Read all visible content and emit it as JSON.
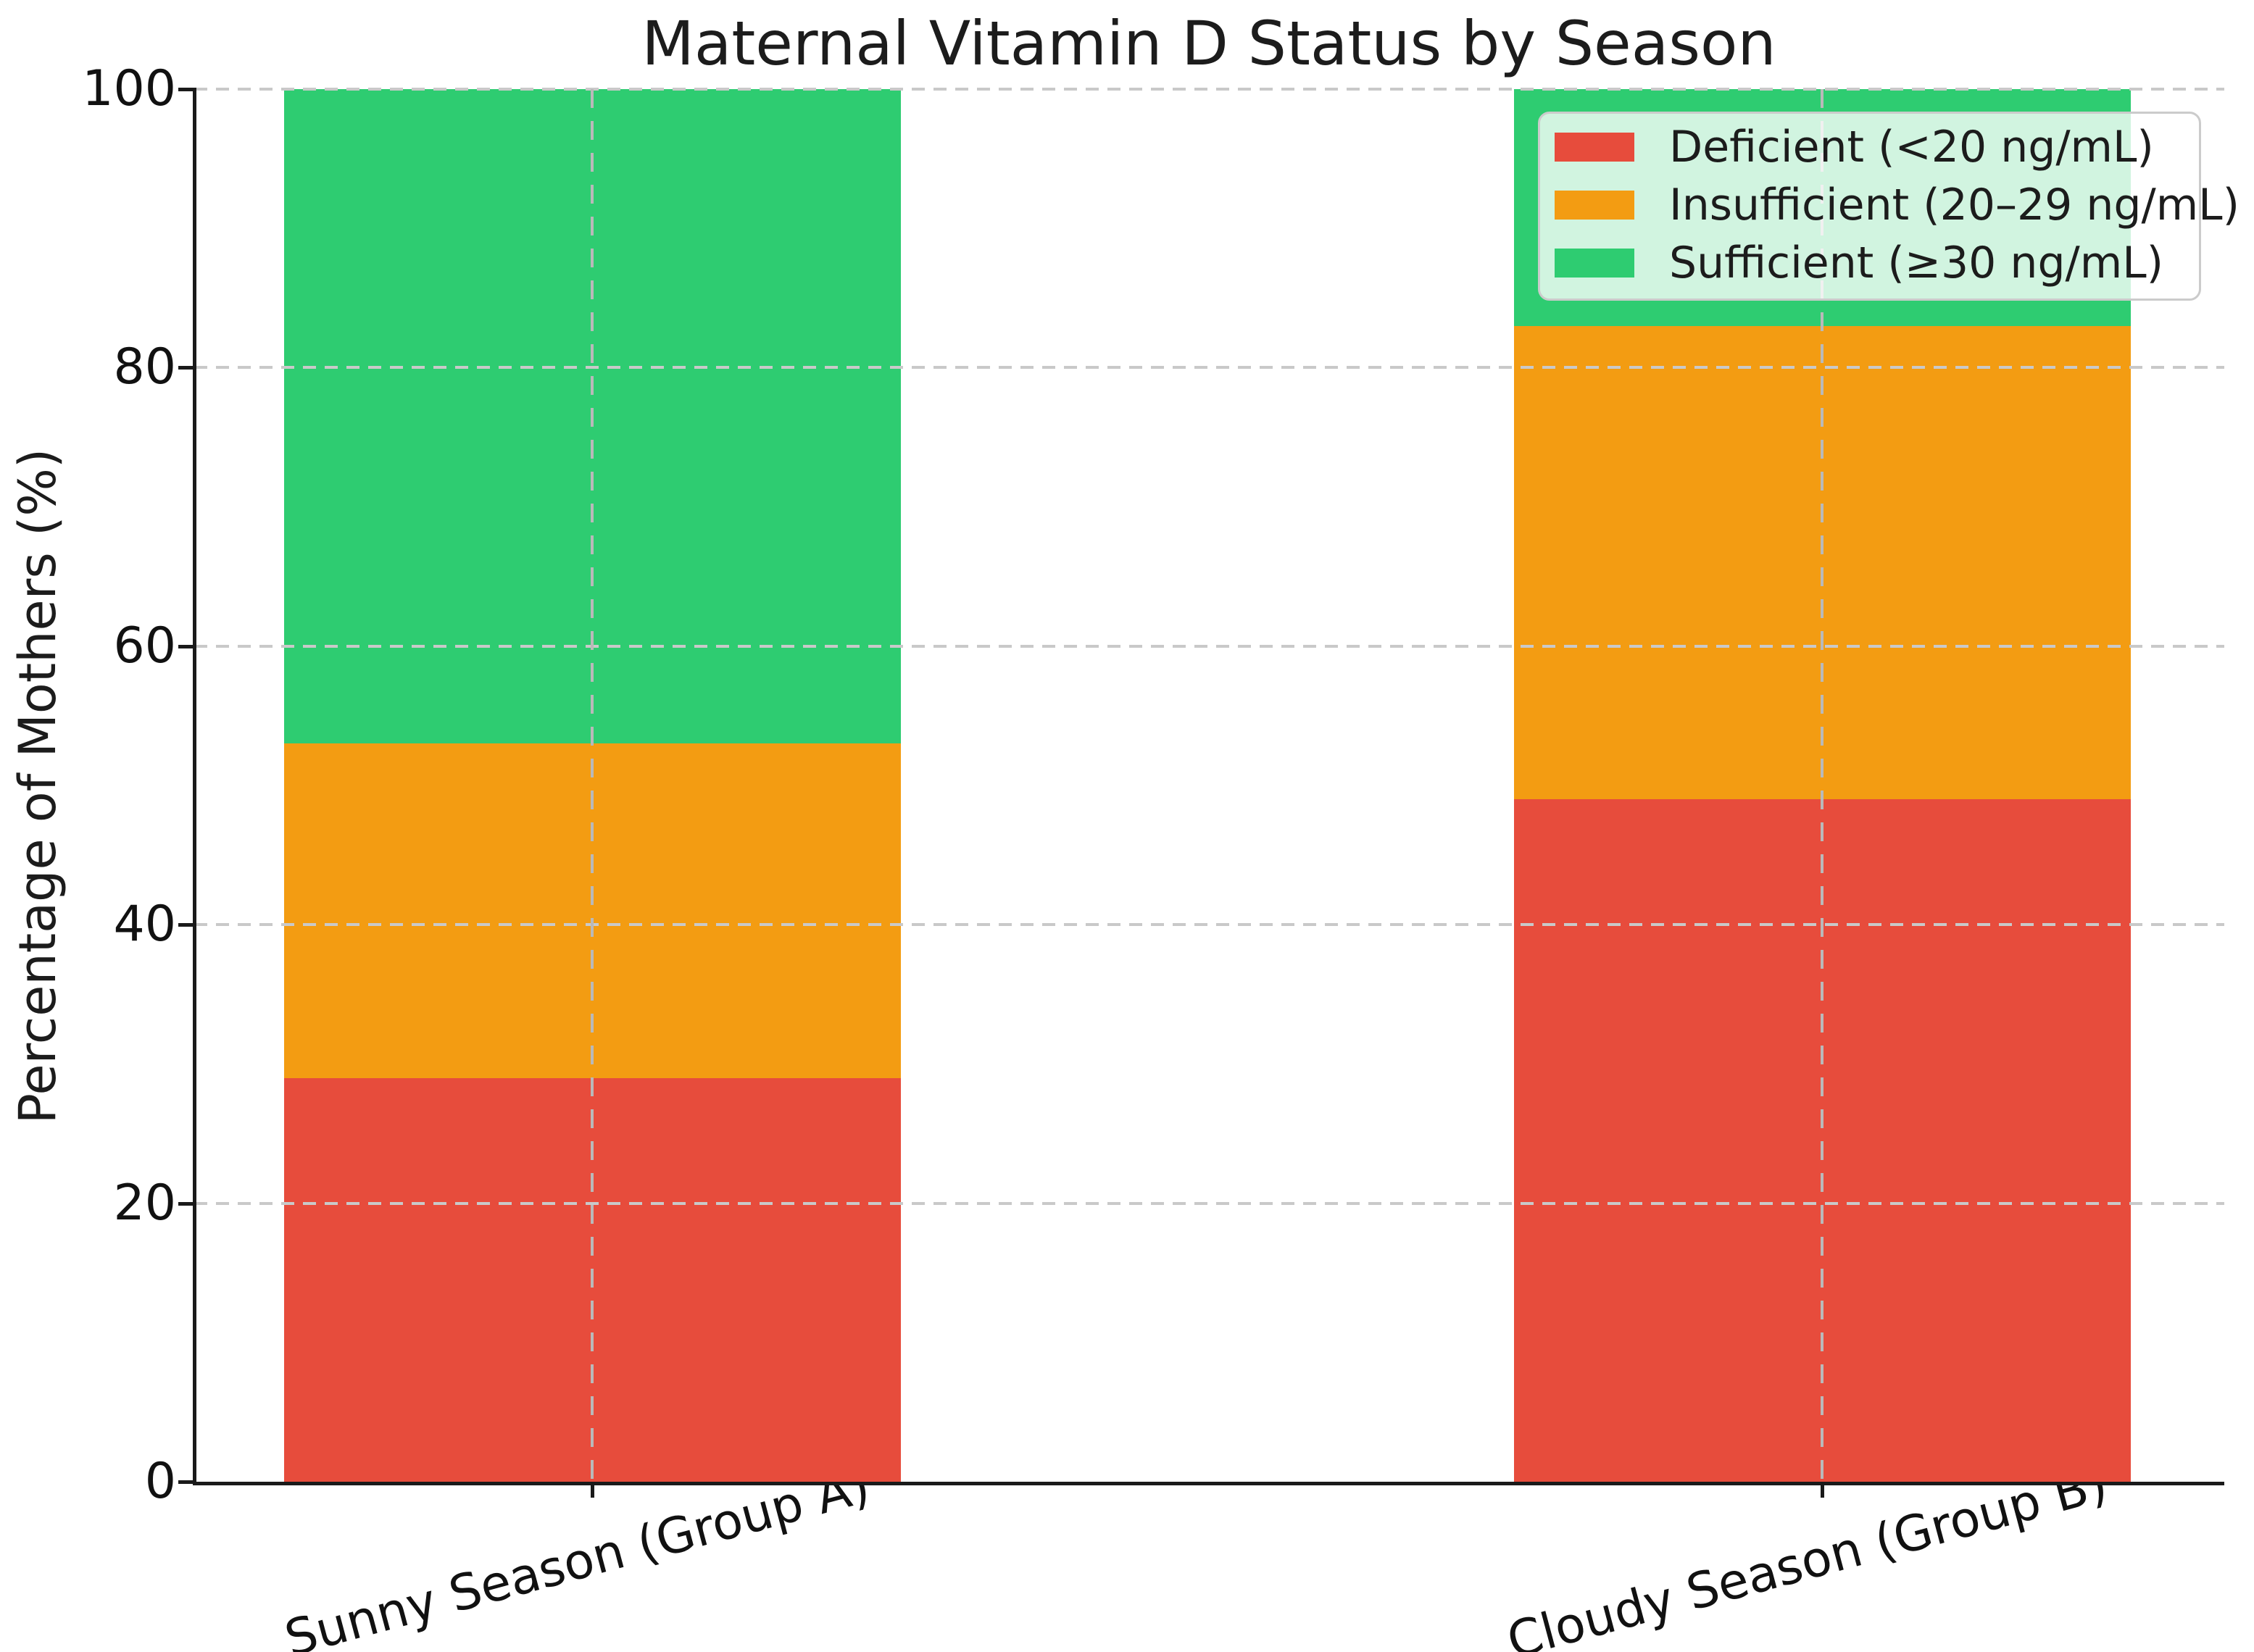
{
  "chart_data": {
    "type": "bar",
    "stacked": true,
    "title": "Maternal Vitamin D Status by Season",
    "ylabel": "Percentage of Mothers (%)",
    "xlabel": "",
    "categories": [
      "Sunny Season (Group A)",
      "Cloudy Season (Group B)"
    ],
    "series": [
      {
        "name": "Deficient (<20 ng/mL)",
        "color": "#e74c3c",
        "values": [
          29,
          49
        ]
      },
      {
        "name": "Insufficient (20–29 ng/mL)",
        "color": "#f39c12",
        "values": [
          24,
          34
        ]
      },
      {
        "name": "Sufficient (≥30 ng/mL)",
        "color": "#2ecc71",
        "values": [
          47,
          17
        ]
      }
    ],
    "ylim": [
      0,
      100
    ],
    "yticks": [
      0,
      20,
      40,
      60,
      80,
      100
    ],
    "ytick_labels": [
      "0",
      "20",
      "40",
      "60",
      "80",
      "100"
    ],
    "grid": true,
    "grid_style": "dashed",
    "legend_position": "upper right",
    "xtick_rotation_deg": 15
  }
}
